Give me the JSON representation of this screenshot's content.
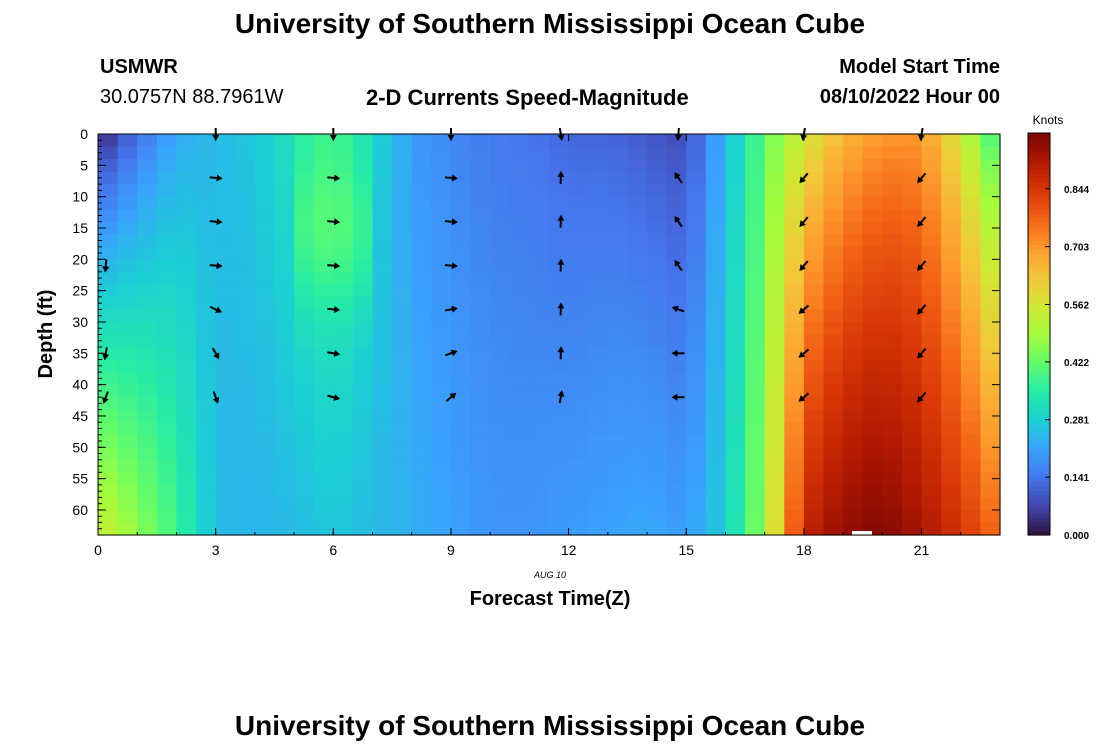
{
  "header": {
    "title": "University of Southern Mississippi Ocean Cube",
    "station_id": "USMWR",
    "station_coords": "30.0757N  88.7961W",
    "plot_title": "2-D Currents Speed-Magnitude",
    "model_label": "Model Start Time",
    "model_time": "08/10/2022 Hour 00"
  },
  "footer": {
    "title": "University of Southern Mississippi Ocean Cube"
  },
  "colors": {
    "stops": [
      "#30123b",
      "#4145ab",
      "#4675ed",
      "#39a2fc",
      "#1bcfd4",
      "#24eca6",
      "#61fc6c",
      "#a4fc3b",
      "#d1e834",
      "#f3c63a",
      "#fe9b2d",
      "#f36315",
      "#d93806",
      "#b11901",
      "#7a0403"
    ]
  },
  "chart_data": {
    "type": "heatmap",
    "title": "2-D Currents Speed-Magnitude",
    "xlabel": "Forecast Time(Z)",
    "ylabel": "Depth (ft)",
    "date_label": "AUG 10",
    "xlim": [
      0,
      23
    ],
    "ylim": [
      0,
      64
    ],
    "x_ticks": [
      0,
      3,
      6,
      9,
      12,
      15,
      18,
      21
    ],
    "y_ticks": [
      0,
      5,
      10,
      15,
      20,
      25,
      30,
      35,
      40,
      45,
      50,
      55,
      60
    ],
    "colorbar": {
      "label": "Knots",
      "ticks": [
        "0.000",
        "0.141",
        "0.281",
        "0.422",
        "0.562",
        "0.703",
        "0.844"
      ],
      "tick_values": [
        0,
        0.141,
        0.281,
        0.422,
        0.562,
        0.703,
        0.844
      ],
      "max": 0.98
    },
    "speed_profile": {
      "hours": [
        0,
        1,
        2,
        3,
        4,
        5,
        6,
        7,
        8,
        9,
        10,
        11,
        12,
        13,
        14,
        15,
        16,
        17,
        18,
        19,
        20,
        21,
        22,
        23
      ],
      "surface": [
        0.02,
        0.13,
        0.22,
        0.25,
        0.27,
        0.33,
        0.38,
        0.3,
        0.2,
        0.17,
        0.15,
        0.14,
        0.12,
        0.12,
        0.1,
        0.08,
        0.24,
        0.42,
        0.55,
        0.65,
        0.7,
        0.7,
        0.55,
        0.35
      ],
      "bottom": [
        0.55,
        0.47,
        0.38,
        0.25,
        0.24,
        0.25,
        0.27,
        0.25,
        0.23,
        0.21,
        0.19,
        0.19,
        0.2,
        0.21,
        0.22,
        0.2,
        0.28,
        0.48,
        0.88,
        0.95,
        0.97,
        0.92,
        0.85,
        0.75
      ]
    },
    "vectors": {
      "hours": [
        0.2,
        3,
        6,
        9,
        11.8,
        14.8,
        18,
        21
      ],
      "depths": [
        0,
        7,
        14,
        21,
        28,
        35,
        42
      ],
      "directions_deg": [
        [
          null,
          90,
          90,
          90,
          80,
          95,
          100,
          100
        ],
        [
          null,
          5,
          5,
          5,
          272,
          235,
          130,
          130
        ],
        [
          null,
          5,
          5,
          5,
          272,
          235,
          130,
          130
        ],
        [
          95,
          5,
          5,
          5,
          272,
          235,
          130,
          130
        ],
        [
          null,
          25,
          5,
          350,
          272,
          200,
          140,
          130
        ],
        [
          100,
          60,
          10,
          340,
          272,
          180,
          140,
          130
        ],
        [
          110,
          70,
          15,
          320,
          280,
          180,
          140,
          130
        ]
      ]
    }
  }
}
